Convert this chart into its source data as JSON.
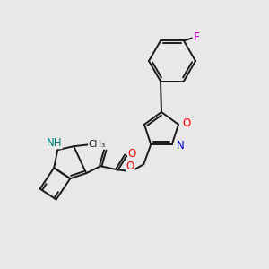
{
  "background_color": "#e8e8e8",
  "bond_color": "#1a1a1a",
  "figsize": [
    3.0,
    3.0
  ],
  "dpi": 100,
  "atom_colors": {
    "O": "#ff0000",
    "N": "#0000cd",
    "F": "#cc00cc",
    "NH": "#008080",
    "C": "#1a1a1a"
  },
  "lw": 1.4
}
